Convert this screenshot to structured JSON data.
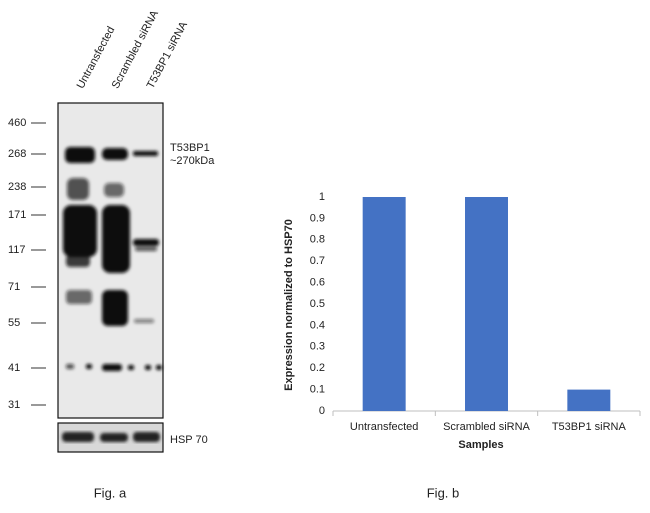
{
  "blot": {
    "lanes": [
      "Untransfected",
      "Scrambled siRNA",
      "T53BP1 siRNA"
    ],
    "markers": [
      460,
      268,
      238,
      171,
      117,
      71,
      55,
      41,
      31
    ],
    "band_label": "T53BP1",
    "band_size": "~270kDa",
    "loading_label": "HSP 70",
    "caption": "Fig. a"
  },
  "chart_data": {
    "type": "bar",
    "categories": [
      "Untransfected",
      "Scrambled siRNA",
      "T53BP1 siRNA"
    ],
    "values": [
      1,
      1,
      0.1
    ],
    "color": "#4472c4",
    "ylim": [
      0,
      1
    ],
    "yticks": [
      0,
      0.1,
      0.2,
      0.3,
      0.4,
      0.5,
      0.6,
      0.7,
      0.8,
      0.9,
      1
    ],
    "ylabel": "Expression normalized to HSP70",
    "xlabel": "Samples",
    "grid": false,
    "caption": "Fig. b"
  }
}
